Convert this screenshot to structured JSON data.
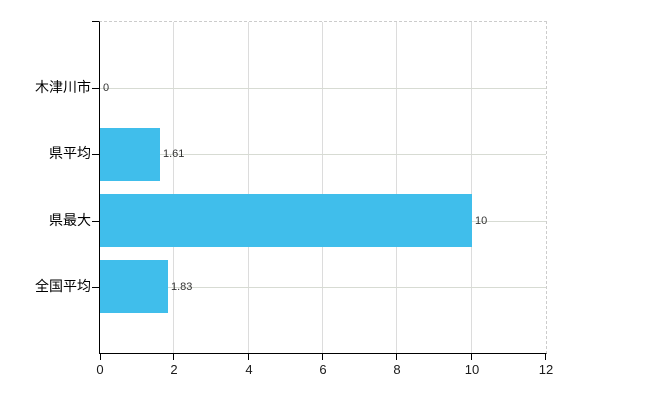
{
  "chart_data": {
    "type": "bar",
    "orientation": "horizontal",
    "title": "",
    "xlabel": "",
    "ylabel": "",
    "categories": [
      "木津川市",
      "県平均",
      "県最大",
      "全国平均"
    ],
    "values": [
      0,
      1.61,
      10,
      1.83
    ],
    "value_labels": [
      "0",
      "1.61",
      "10",
      "1.83"
    ],
    "x_ticks": [
      0,
      2,
      4,
      6,
      8,
      10,
      12
    ],
    "xlim": [
      0,
      12
    ],
    "grid": "on",
    "legend": "none",
    "colors": {
      "bar": "#40BEEB",
      "axis": "#000000",
      "v_gridline": "#dcdcdc",
      "h_gridline": "#d7dbd3",
      "border_dashed": "#cccccc",
      "category_label": "#000000",
      "value_label": "#333333",
      "tick_label": "#1a1a1a",
      "background": "#ffffff"
    }
  }
}
